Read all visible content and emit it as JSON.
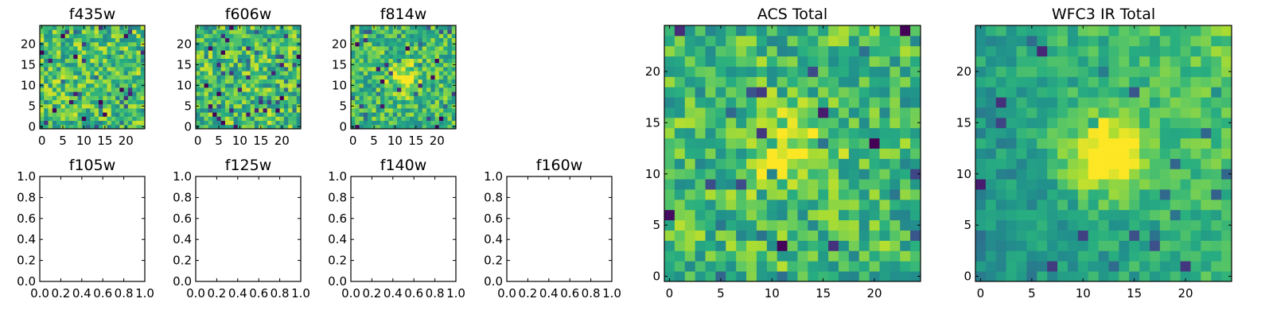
{
  "chart_data": [
    {
      "type": "heatmap",
      "title": "f435w",
      "grid_size": 25,
      "xticks": [
        "0",
        "5",
        "10",
        "15",
        "20"
      ],
      "yticks": [
        "0",
        "5",
        "10",
        "15",
        "20"
      ],
      "xlim": [
        -0.5,
        24.5
      ],
      "ylim": [
        -0.5,
        24.5
      ],
      "colormap": "viridis",
      "pattern": "noise",
      "seed": 11
    },
    {
      "type": "heatmap",
      "title": "f606w",
      "grid_size": 25,
      "xticks": [
        "0",
        "5",
        "10",
        "15",
        "20"
      ],
      "yticks": [
        "0",
        "5",
        "10",
        "15",
        "20"
      ],
      "xlim": [
        -0.5,
        24.5
      ],
      "ylim": [
        -0.5,
        24.5
      ],
      "colormap": "viridis",
      "pattern": "noise",
      "seed": 23
    },
    {
      "type": "heatmap",
      "title": "f814w",
      "grid_size": 25,
      "xticks": [
        "0",
        "5",
        "10",
        "15",
        "20"
      ],
      "yticks": [
        "0",
        "5",
        "10",
        "15",
        "20"
      ],
      "xlim": [
        -0.5,
        24.5
      ],
      "ylim": [
        -0.5,
        24.5
      ],
      "colormap": "viridis",
      "pattern": "noise_with_central_source",
      "seed": 37
    },
    {
      "type": "empty",
      "title": "f105w",
      "xticks": [
        "0.0",
        "0.2",
        "0.4",
        "0.6",
        "0.8",
        "1.0"
      ],
      "yticks": [
        "0.0",
        "0.2",
        "0.4",
        "0.6",
        "0.8",
        "1.0"
      ],
      "xlim": [
        0,
        1
      ],
      "ylim": [
        0,
        1
      ]
    },
    {
      "type": "empty",
      "title": "f125w",
      "xticks": [
        "0.0",
        "0.2",
        "0.4",
        "0.6",
        "0.8",
        "1.0"
      ],
      "yticks": [
        "0.0",
        "0.2",
        "0.4",
        "0.6",
        "0.8",
        "1.0"
      ],
      "xlim": [
        0,
        1
      ],
      "ylim": [
        0,
        1
      ]
    },
    {
      "type": "empty",
      "title": "f140w",
      "xticks": [
        "0.0",
        "0.2",
        "0.4",
        "0.6",
        "0.8",
        "1.0"
      ],
      "yticks": [
        "0.0",
        "0.2",
        "0.4",
        "0.6",
        "0.8",
        "1.0"
      ],
      "xlim": [
        0,
        1
      ],
      "ylim": [
        0,
        1
      ]
    },
    {
      "type": "empty",
      "title": "f160w",
      "xticks": [
        "0.0",
        "0.2",
        "0.4",
        "0.6",
        "0.8",
        "1.0"
      ],
      "yticks": [
        "0.0",
        "0.2",
        "0.4",
        "0.6",
        "0.8",
        "1.0"
      ],
      "xlim": [
        0,
        1
      ],
      "ylim": [
        0,
        1
      ]
    },
    {
      "type": "heatmap",
      "title": "ACS Total",
      "grid_size": 25,
      "xticks": [
        "0",
        "5",
        "10",
        "15",
        "20"
      ],
      "yticks": [
        "0",
        "5",
        "10",
        "15",
        "20"
      ],
      "xlim": [
        -0.5,
        24.5
      ],
      "ylim": [
        -0.5,
        24.5
      ],
      "colormap": "viridis",
      "pattern": "noise_with_central_source",
      "seed": 53
    },
    {
      "type": "heatmap",
      "title": "WFC3 IR Total",
      "grid_size": 25,
      "xticks": [
        "0",
        "5",
        "10",
        "15",
        "20"
      ],
      "yticks": [
        "0",
        "5",
        "10",
        "15",
        "20"
      ],
      "xlim": [
        -0.5,
        24.5
      ],
      "ylim": [
        -0.5,
        24.5
      ],
      "colormap": "viridis",
      "pattern": "smooth_with_central_source",
      "seed": 71
    }
  ]
}
